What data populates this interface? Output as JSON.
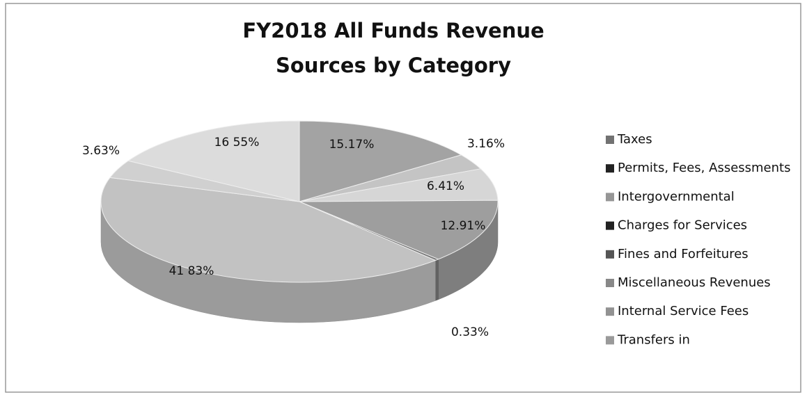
{
  "chart_data": {
    "type": "pie3d",
    "title": [
      "FY2018 All Funds Revenue",
      "Sources by Category"
    ],
    "categories": [
      "Taxes",
      "Permits, Fees, Assessments",
      "Intergovernmental",
      "Charges for Services",
      "Fines and Forfeitures",
      "Miscellaneous Revenues",
      "Internal Service Fees",
      "Transfers in"
    ],
    "values": [
      15.17,
      3.16,
      6.41,
      12.91,
      0.33,
      41.83,
      3.63,
      16.55
    ],
    "value_labels": [
      "15.17%",
      "3.16%",
      "6.41%",
      "12.91%",
      "0.33%",
      "41 83%",
      "3.63%",
      "16 55%"
    ],
    "colors": [
      "#a3a3a3",
      "#c4c4c4",
      "#d6d6d6",
      "#9e9e9e",
      "#7a7a7a",
      "#c2c2c2",
      "#d0d0d0",
      "#dcdcdc"
    ],
    "legend": "right"
  }
}
